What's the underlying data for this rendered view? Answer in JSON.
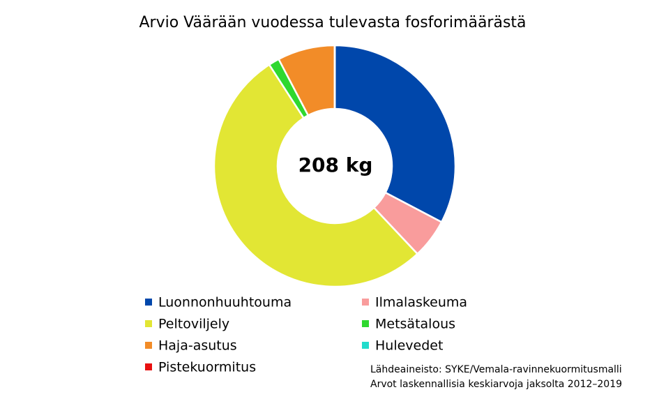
{
  "chart_data": {
    "type": "donut",
    "title": "Arvio Väärään vuodessa tulevasta fosforimäärästä",
    "center_label": "208 kg",
    "categories": [
      "Luonnonhuuhtouma",
      "Ilmalaskeuma",
      "Peltoviljely",
      "Metsätalous",
      "Haja-asutus",
      "Hulevedet",
      "Pistekuormitus"
    ],
    "values": [
      68,
      11,
      110,
      3,
      16,
      0,
      0
    ],
    "colors": [
      "#0047ab",
      "#f99c9c",
      "#e2e634",
      "#2fd82f",
      "#f28c28",
      "#22dccc",
      "#e81010"
    ],
    "source": [
      "Lähdeaineisto: SYKE/Vemala-ravinnekuormitusmalli",
      "Arvot laskennallisia keskiarvoja jaksolta 2012–2019"
    ]
  }
}
